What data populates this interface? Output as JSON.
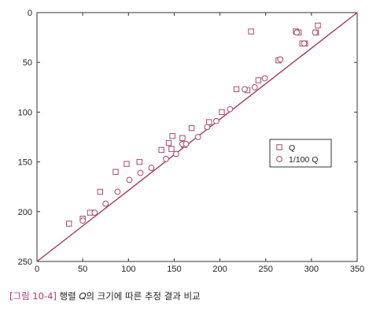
{
  "colors": {
    "marker": "#a8476a",
    "diagonal": "#a03a5e",
    "axis": "#333333",
    "caption_tag": "#b0366e"
  },
  "caption": {
    "tag": "[그림 10-4]",
    "text": " 행렬 𝑄의 크기에 따른 추정 결과 비교"
  },
  "chart_data": {
    "type": "scatter",
    "title": "",
    "xlabel": "",
    "ylabel": "",
    "xlim": [
      0,
      350
    ],
    "ylim": [
      0,
      250
    ],
    "y_inverted": true,
    "grid": false,
    "legend_position": "center-right",
    "x_ticks": [
      0,
      50,
      100,
      150,
      200,
      250,
      300,
      350
    ],
    "y_ticks": [
      0,
      50,
      100,
      150,
      200,
      250
    ],
    "reference_line": {
      "from": [
        0,
        250
      ],
      "to": [
        350,
        0
      ]
    },
    "series": [
      {
        "name": "Q",
        "marker": "square",
        "points": [
          [
            35,
            212
          ],
          [
            50,
            207
          ],
          [
            58,
            201
          ],
          [
            69,
            180
          ],
          [
            86,
            160
          ],
          [
            98,
            152
          ],
          [
            112,
            150
          ],
          [
            136,
            138
          ],
          [
            144,
            131
          ],
          [
            147,
            137
          ],
          [
            148,
            124
          ],
          [
            159,
            126
          ],
          [
            161,
            133
          ],
          [
            169,
            116
          ],
          [
            188,
            110
          ],
          [
            202,
            100
          ],
          [
            218,
            77
          ],
          [
            230,
            78
          ],
          [
            234,
            19
          ],
          [
            242,
            68
          ],
          [
            264,
            48
          ],
          [
            283,
            19
          ],
          [
            286,
            20
          ],
          [
            290,
            31
          ],
          [
            293,
            31
          ],
          [
            305,
            20
          ],
          [
            307,
            13
          ]
        ]
      },
      {
        "name": "1/100 Q",
        "marker": "circle",
        "points": [
          [
            50,
            209
          ],
          [
            63,
            201
          ],
          [
            75,
            192
          ],
          [
            88,
            180
          ],
          [
            101,
            168
          ],
          [
            113,
            161
          ],
          [
            125,
            156
          ],
          [
            141,
            147
          ],
          [
            152,
            142
          ],
          [
            159,
            132
          ],
          [
            163,
            132
          ],
          [
            176,
            125
          ],
          [
            186,
            115
          ],
          [
            196,
            109
          ],
          [
            211,
            97
          ],
          [
            227,
            77
          ],
          [
            238,
            75
          ],
          [
            249,
            66
          ],
          [
            266,
            47
          ],
          [
            284,
            20
          ],
          [
            292,
            31
          ],
          [
            304,
            20
          ]
        ]
      }
    ]
  }
}
